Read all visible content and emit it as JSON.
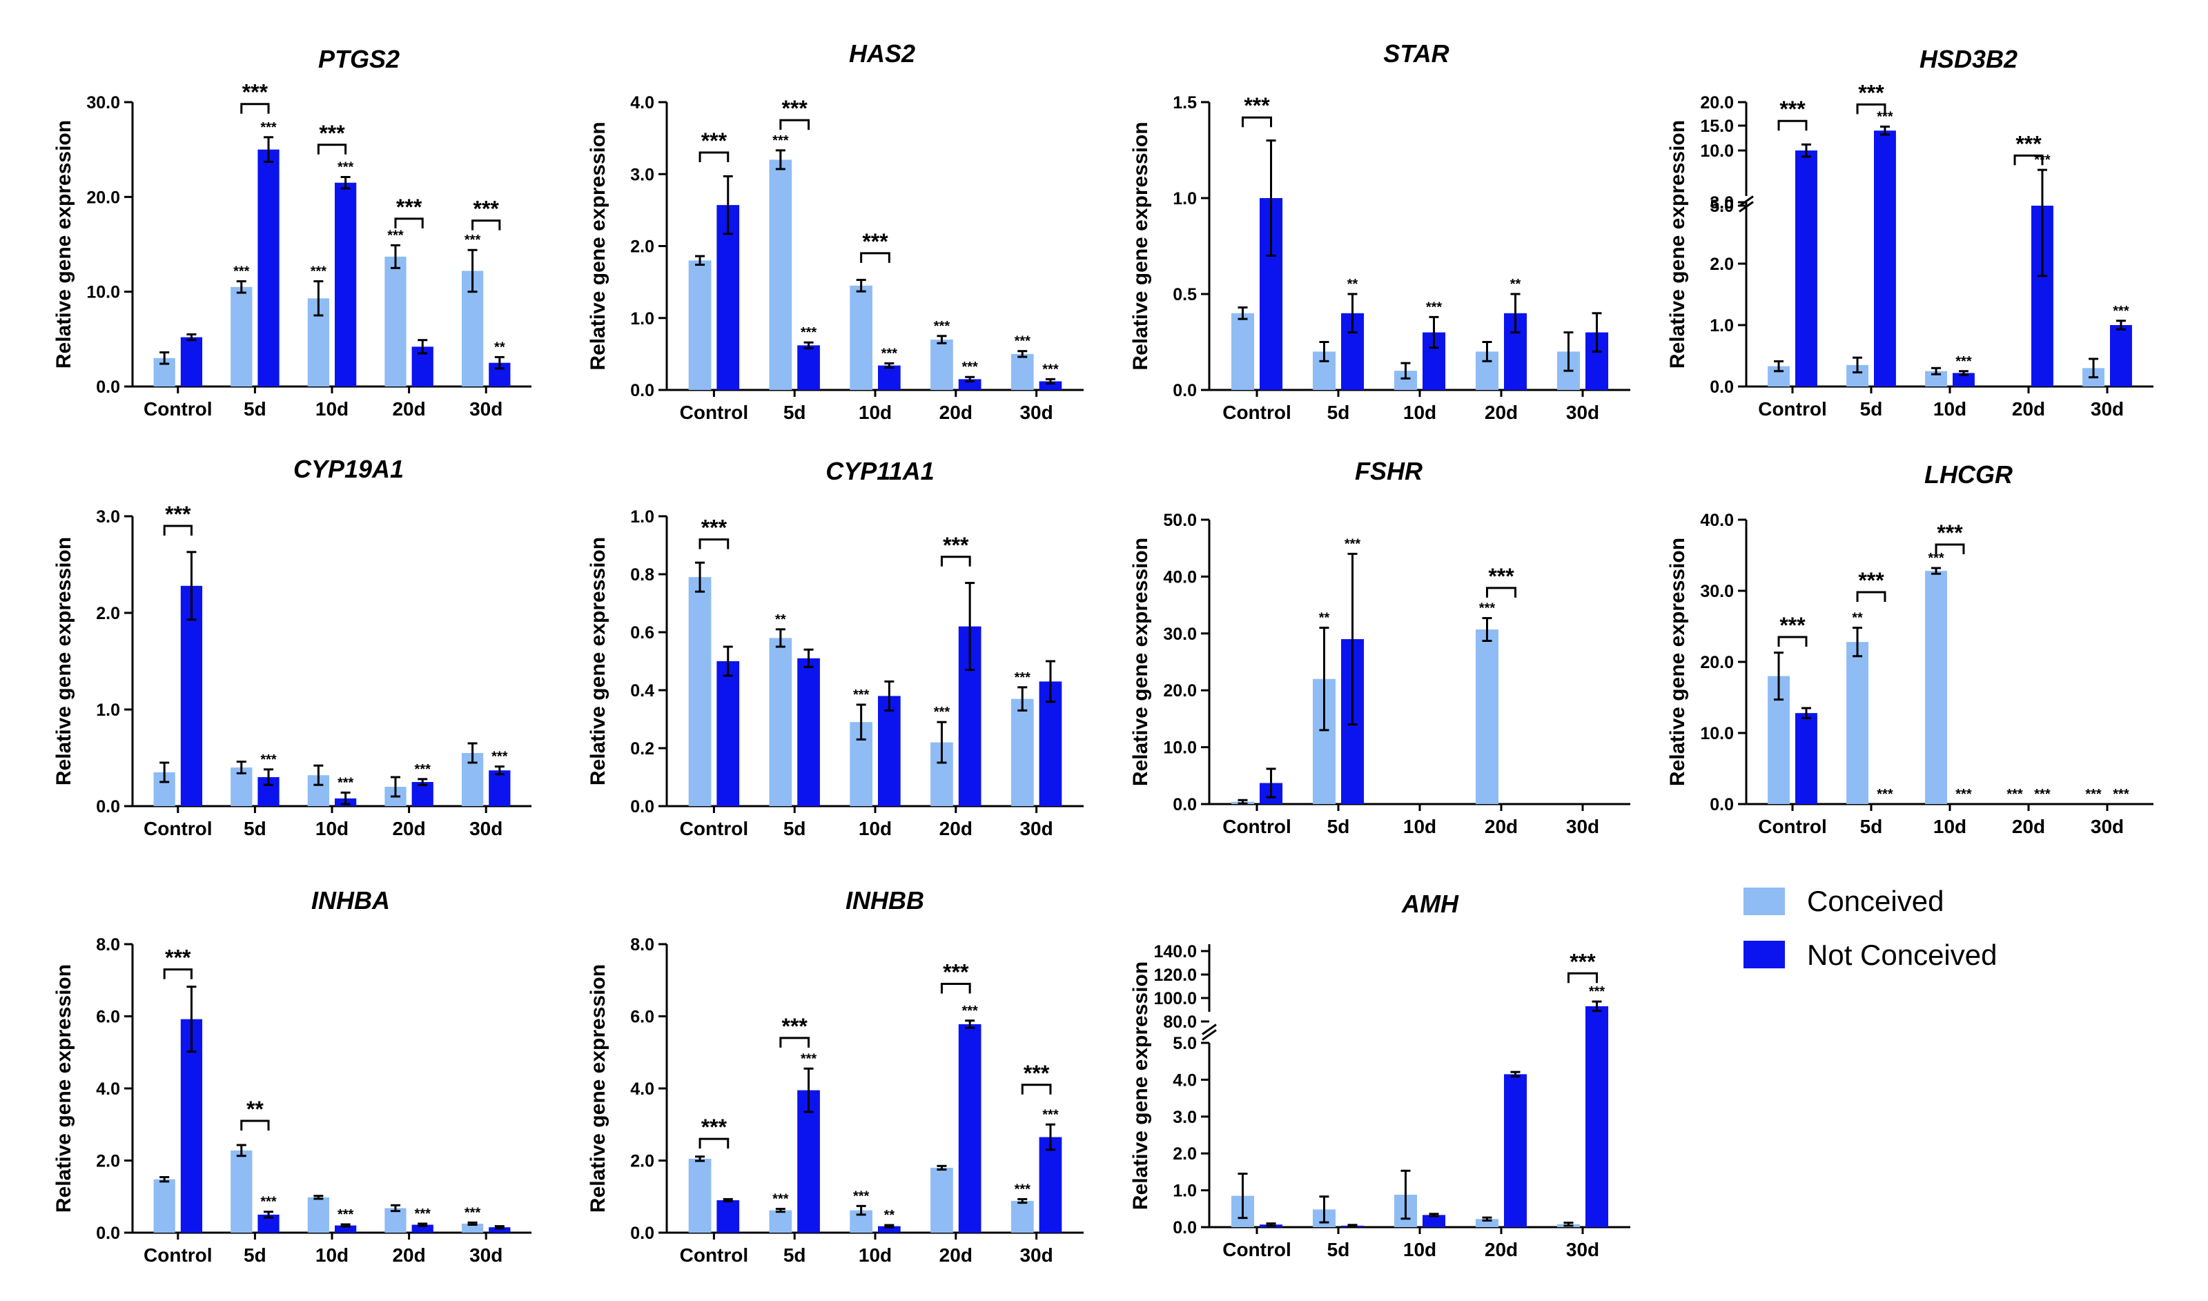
{
  "legend": {
    "items": [
      {
        "label": "Conceived",
        "color": "#8fbcf4"
      },
      {
        "label": "Not Conceived",
        "color": "#0b14ee"
      }
    ]
  },
  "chart_data": [
    {
      "type": "bar",
      "title": "PTGS2",
      "ylabel": "Relative gene expression",
      "categories": [
        "Control",
        "5d",
        "10d",
        "20d",
        "30d"
      ],
      "yticks": [
        0,
        10,
        20,
        30
      ],
      "ytick_labels": [
        "0.0",
        "10.0",
        "20.0",
        "30.0"
      ],
      "ylim": [
        0,
        30
      ],
      "series": [
        {
          "name": "Conceived",
          "values": [
            3,
            10.5,
            9.3,
            13.7,
            12.2
          ],
          "errors": [
            0.6,
            0.6,
            1.8,
            1.2,
            2.2
          ],
          "sig": [
            "",
            "***",
            "***",
            "***",
            "***"
          ]
        },
        {
          "name": "Not Conceived",
          "values": [
            5.2,
            25,
            21.5,
            4.2,
            2.5
          ],
          "errors": [
            0.3,
            1.3,
            0.6,
            0.7,
            0.6
          ],
          "sig": [
            "",
            "***",
            "***",
            "",
            "**"
          ]
        }
      ],
      "brackets": [
        {
          "index": 1,
          "label": "***",
          "y": 29.8
        },
        {
          "index": 2,
          "label": "***",
          "y": 25.5
        },
        {
          "index": 3,
          "label": "***",
          "y": 17.7
        },
        {
          "index": 4,
          "label": "***",
          "y": 17.5
        }
      ]
    },
    {
      "type": "bar",
      "title": "HAS2",
      "ylabel": "Relative gene expression",
      "categories": [
        "Control",
        "5d",
        "10d",
        "20d",
        "30d"
      ],
      "yticks": [
        0,
        1,
        2,
        3,
        4
      ],
      "ytick_labels": [
        "0.0",
        "1.0",
        "2.0",
        "3.0",
        "4.0"
      ],
      "ylim": [
        0,
        4
      ],
      "series": [
        {
          "name": "Conceived",
          "values": [
            1.8,
            3.2,
            1.45,
            0.7,
            0.5
          ],
          "errors": [
            0.06,
            0.13,
            0.08,
            0.05,
            0.04
          ],
          "sig": [
            "",
            "***",
            "",
            "***",
            "***"
          ]
        },
        {
          "name": "Not Conceived",
          "values": [
            2.57,
            0.62,
            0.34,
            0.15,
            0.12
          ],
          "errors": [
            0.4,
            0.04,
            0.03,
            0.03,
            0.03
          ],
          "sig": [
            "",
            "***",
            "***",
            "***",
            "***"
          ]
        }
      ],
      "brackets": [
        {
          "index": 0,
          "label": "***",
          "y": 3.3
        },
        {
          "index": 1,
          "label": "***",
          "y": 3.75
        },
        {
          "index": 2,
          "label": "***",
          "y": 1.9
        }
      ]
    },
    {
      "type": "bar",
      "title": "STAR",
      "ylabel": "Relative gene expression",
      "categories": [
        "Control",
        "5d",
        "10d",
        "20d",
        "30d"
      ],
      "yticks": [
        0,
        0.5,
        1,
        1.5
      ],
      "ytick_labels": [
        "0.0",
        "0.5",
        "1.0",
        "1.5"
      ],
      "ylim": [
        0,
        1.5
      ],
      "series": [
        {
          "name": "Conceived",
          "values": [
            0.4,
            0.2,
            0.1,
            0.2,
            0.2
          ],
          "errors": [
            0.03,
            0.05,
            0.04,
            0.05,
            0.1
          ],
          "sig": [
            "",
            "",
            "",
            "",
            ""
          ]
        },
        {
          "name": "Not Conceived",
          "values": [
            1.0,
            0.4,
            0.3,
            0.4,
            0.3
          ],
          "errors": [
            0.3,
            0.1,
            0.08,
            0.1,
            0.1
          ],
          "sig": [
            "",
            "**",
            "***",
            "**",
            ""
          ]
        }
      ],
      "brackets": [
        {
          "index": 0,
          "label": "***",
          "y": 1.42
        }
      ]
    },
    {
      "type": "bar",
      "title": "HSD3B2",
      "ylabel": "Relative gene expression",
      "categories": [
        "Control",
        "5d",
        "10d",
        "20d",
        "30d"
      ],
      "broken_axis": true,
      "yticks": [
        0,
        1,
        2,
        3,
        5,
        10,
        15,
        20
      ],
      "ytick_labels": [
        "0.0",
        "1.0",
        "2.0",
        "3.0",
        "5.0",
        "10.0",
        "15.0",
        "20.0"
      ],
      "ylim": [
        0,
        20
      ],
      "series": [
        {
          "name": "Conceived",
          "values": [
            0.33,
            0.35,
            0.25,
            0,
            0.3
          ],
          "errors": [
            0.08,
            0.12,
            0.05,
            0,
            0.15
          ],
          "sig": [
            "",
            "",
            "",
            "",
            ""
          ]
        },
        {
          "name": "Not Conceived",
          "values": [
            10,
            14,
            0.22,
            4,
            1.0
          ],
          "errors": [
            1.2,
            0.8,
            0.03,
            2.2,
            0.07
          ],
          "sig": [
            "",
            "***",
            "***",
            "***",
            "***"
          ]
        }
      ],
      "brackets": [
        {
          "index": 0,
          "label": "***",
          "y": 16
        },
        {
          "index": 1,
          "label": "***",
          "y": 19.5
        },
        {
          "index": 3,
          "label": "***",
          "y": 9
        }
      ]
    },
    {
      "type": "bar",
      "title": "CYP19A1",
      "ylabel": "Relative gene expression",
      "categories": [
        "Control",
        "5d",
        "10d",
        "20d",
        "30d"
      ],
      "yticks": [
        0,
        1,
        2,
        3
      ],
      "ytick_labels": [
        "0.0",
        "1.0",
        "2.0",
        "3.0"
      ],
      "ylim": [
        0,
        3
      ],
      "series": [
        {
          "name": "Conceived",
          "values": [
            0.35,
            0.4,
            0.32,
            0.2,
            0.55
          ],
          "errors": [
            0.1,
            0.06,
            0.1,
            0.1,
            0.1
          ],
          "sig": [
            "",
            "",
            "",
            "",
            ""
          ]
        },
        {
          "name": "Not Conceived",
          "values": [
            2.28,
            0.3,
            0.08,
            0.25,
            0.37
          ],
          "errors": [
            0.35,
            0.08,
            0.06,
            0.03,
            0.04
          ],
          "sig": [
            "",
            "***",
            "***",
            "***",
            "***"
          ]
        }
      ],
      "brackets": [
        {
          "index": 0,
          "label": "***",
          "y": 2.9
        }
      ]
    },
    {
      "type": "bar",
      "title": "CYP11A1",
      "ylabel": "Relative gene expression",
      "categories": [
        "Control",
        "5d",
        "10d",
        "20d",
        "30d"
      ],
      "yticks": [
        0,
        0.2,
        0.4,
        0.6,
        0.8,
        1.0
      ],
      "ytick_labels": [
        "0.0",
        "0.2",
        "0.4",
        "0.6",
        "0.8",
        "1.0"
      ],
      "ylim": [
        0,
        1
      ],
      "series": [
        {
          "name": "Conceived",
          "values": [
            0.79,
            0.58,
            0.29,
            0.22,
            0.37
          ],
          "errors": [
            0.05,
            0.03,
            0.06,
            0.07,
            0.04
          ],
          "sig": [
            "",
            "**",
            "***",
            "***",
            "***"
          ]
        },
        {
          "name": "Not Conceived",
          "values": [
            0.5,
            0.51,
            0.38,
            0.62,
            0.43
          ],
          "errors": [
            0.05,
            0.03,
            0.05,
            0.15,
            0.07
          ],
          "sig": [
            "",
            "",
            "",
            "",
            ""
          ]
        }
      ],
      "brackets": [
        {
          "index": 0,
          "label": "***",
          "y": 0.92
        },
        {
          "index": 3,
          "label": "***",
          "y": 0.86
        }
      ]
    },
    {
      "type": "bar",
      "title": "FSHR",
      "ylabel": "Relative gene expression",
      "categories": [
        "Control",
        "5d",
        "10d",
        "20d",
        "30d"
      ],
      "yticks": [
        0,
        10,
        20,
        30,
        40,
        50
      ],
      "ytick_labels": [
        "0.0",
        "10.0",
        "20.0",
        "30.0",
        "40.0",
        "50.0"
      ],
      "ylim": [
        0,
        50
      ],
      "series": [
        {
          "name": "Conceived",
          "values": [
            0.4,
            22,
            0,
            30.7,
            0
          ],
          "errors": [
            0.3,
            9,
            0,
            2,
            0
          ],
          "sig": [
            "",
            "**",
            "",
            "***",
            ""
          ]
        },
        {
          "name": "Not Conceived",
          "values": [
            3.7,
            29,
            0,
            0,
            0
          ],
          "errors": [
            2.5,
            15,
            0,
            0,
            0
          ],
          "sig": [
            "",
            "***",
            "",
            "",
            ""
          ]
        }
      ],
      "brackets": [
        {
          "index": 3,
          "label": "***",
          "y": 38
        }
      ]
    },
    {
      "type": "bar",
      "title": "LHCGR",
      "ylabel": "Relative gene expression",
      "categories": [
        "Control",
        "5d",
        "10d",
        "20d",
        "30d"
      ],
      "yticks": [
        0,
        10,
        20,
        30,
        40
      ],
      "ytick_labels": [
        "0.0",
        "10.0",
        "20.0",
        "30.0",
        "40.0"
      ],
      "ylim": [
        0,
        40
      ],
      "series": [
        {
          "name": "Conceived",
          "values": [
            18,
            22.8,
            32.8,
            0,
            0
          ],
          "errors": [
            3.3,
            2,
            0.4,
            0,
            0
          ],
          "sig": [
            "",
            "**",
            "***",
            "***",
            "***"
          ]
        },
        {
          "name": "Not Conceived",
          "values": [
            12.8,
            0,
            0,
            0,
            0
          ],
          "errors": [
            0.7,
            0,
            0,
            0,
            0
          ],
          "sig": [
            "",
            "***",
            "***",
            "***",
            "***"
          ]
        }
      ],
      "brackets": [
        {
          "index": 0,
          "label": "***",
          "y": 23.5
        },
        {
          "index": 1,
          "label": "***",
          "y": 29.8
        },
        {
          "index": 2,
          "label": "***",
          "y": 36.5
        }
      ]
    },
    {
      "type": "bar",
      "title": "INHBA",
      "ylabel": "Relative gene expression",
      "categories": [
        "Control",
        "5d",
        "10d",
        "20d",
        "30d"
      ],
      "yticks": [
        0,
        2,
        4,
        6,
        8
      ],
      "ytick_labels": [
        "0.0",
        "2.0",
        "4.0",
        "6.0",
        "8.0"
      ],
      "ylim": [
        0,
        8
      ],
      "series": [
        {
          "name": "Conceived",
          "values": [
            1.48,
            2.28,
            0.98,
            0.68,
            0.25
          ],
          "errors": [
            0.06,
            0.15,
            0.04,
            0.08,
            0.03
          ],
          "sig": [
            "",
            "",
            "",
            "",
            "***"
          ]
        },
        {
          "name": "Not Conceived",
          "values": [
            5.92,
            0.5,
            0.2,
            0.22,
            0.15
          ],
          "errors": [
            0.9,
            0.08,
            0.03,
            0.03,
            0.03
          ],
          "sig": [
            "",
            "***",
            "***",
            "***",
            ""
          ]
        }
      ],
      "brackets": [
        {
          "index": 0,
          "label": "***",
          "y": 7.3
        },
        {
          "index": 1,
          "label": "**",
          "y": 3.1
        }
      ]
    },
    {
      "type": "bar",
      "title": "INHBB",
      "ylabel": "Relative gene expression",
      "categories": [
        "Control",
        "5d",
        "10d",
        "20d",
        "30d"
      ],
      "yticks": [
        0,
        2,
        4,
        6,
        8
      ],
      "ytick_labels": [
        "0.0",
        "2.0",
        "4.0",
        "6.0",
        "8.0"
      ],
      "ylim": [
        0,
        8
      ],
      "series": [
        {
          "name": "Conceived",
          "values": [
            2.05,
            0.62,
            0.62,
            1.8,
            0.88
          ],
          "errors": [
            0.06,
            0.04,
            0.12,
            0.05,
            0.05
          ],
          "sig": [
            "",
            "***",
            "***",
            "",
            "***"
          ]
        },
        {
          "name": "Not Conceived",
          "values": [
            0.9,
            3.95,
            0.18,
            5.78,
            2.65
          ],
          "errors": [
            0.03,
            0.6,
            0.03,
            0.1,
            0.35
          ],
          "sig": [
            "",
            "***",
            "**",
            "***",
            "***"
          ]
        }
      ],
      "brackets": [
        {
          "index": 0,
          "label": "***",
          "y": 2.6
        },
        {
          "index": 1,
          "label": "***",
          "y": 5.4
        },
        {
          "index": 3,
          "label": "***",
          "y": 6.9
        },
        {
          "index": 4,
          "label": "***",
          "y": 4.1
        }
      ]
    },
    {
      "type": "bar",
      "title": "AMH",
      "ylabel": "Relative gene expression",
      "categories": [
        "Control",
        "5d",
        "10d",
        "20d",
        "30d"
      ],
      "broken_axis": true,
      "yticks": [
        0,
        1,
        2,
        3,
        4,
        5,
        80,
        100,
        120,
        140
      ],
      "ytick_labels": [
        "0.0",
        "1.0",
        "2.0",
        "3.0",
        "4.0",
        "5.0",
        "80.0",
        "100.0",
        "120.0",
        "140.0"
      ],
      "ylim": [
        0,
        140
      ],
      "series": [
        {
          "name": "Conceived",
          "values": [
            0.85,
            0.48,
            0.88,
            0.22,
            0.08
          ],
          "errors": [
            0.6,
            0.35,
            0.65,
            0.04,
            0.04
          ],
          "sig": [
            "",
            "",
            "",
            "",
            ""
          ]
        },
        {
          "name": "Not Conceived",
          "values": [
            0.07,
            0.04,
            0.33,
            4.15,
            93
          ],
          "errors": [
            0.03,
            0.02,
            0.03,
            0.06,
            4
          ],
          "sig": [
            "",
            "",
            "",
            "",
            "***"
          ]
        }
      ],
      "brackets": [
        {
          "index": 4,
          "label": "***",
          "y": 121
        }
      ]
    }
  ]
}
